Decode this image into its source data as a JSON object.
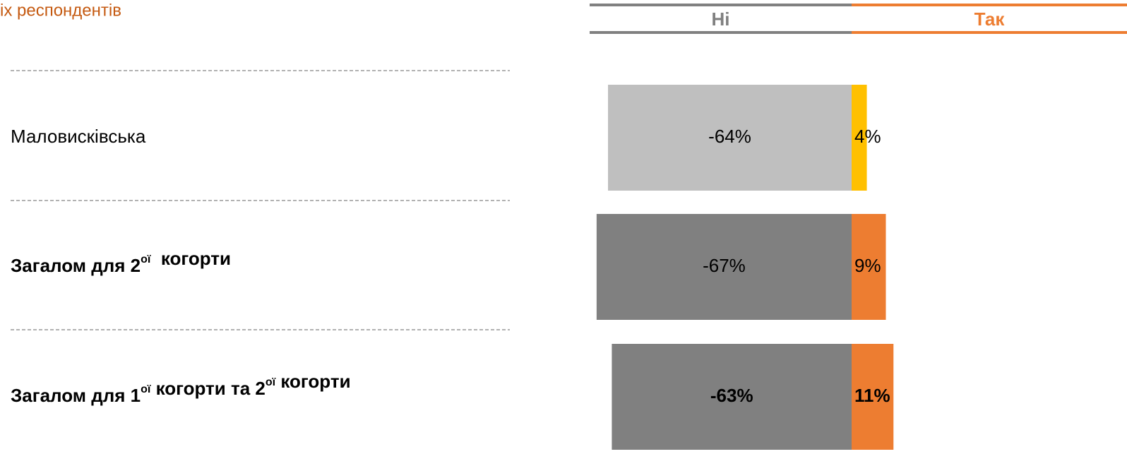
{
  "chart_data": {
    "type": "diverging_bar",
    "title": "іх респондентів",
    "categories": [
      [
        {
          "text": "Маловисківська"
        }
      ],
      [
        {
          "text": "Загалом для 2"
        },
        {
          "sup": "ої"
        },
        {
          "text": "  когорти"
        }
      ],
      [
        {
          "text": "Загалом для 1"
        },
        {
          "sup": "ої"
        },
        {
          "text": " когорти та 2"
        },
        {
          "sup": "ої"
        },
        {
          "text": " когорти"
        }
      ]
    ],
    "label_bold": [
      false,
      true,
      true
    ],
    "value_bold": [
      false,
      false,
      true
    ],
    "series": [
      {
        "name": "Ні",
        "color": "#808080",
        "colors": [
          "#bfbfbf",
          "#808080",
          "#808080"
        ],
        "values": [
          -64,
          -67,
          -63
        ],
        "value_labels": [
          "-64%",
          "-67%",
          "-63%"
        ]
      },
      {
        "name": "Так",
        "color": "#ed7d31",
        "colors": [
          "#ffc000",
          "#ed7d31",
          "#ed7d31"
        ],
        "values": [
          4,
          9,
          11
        ],
        "value_labels": [
          "4%",
          "9%",
          "11%"
        ]
      }
    ]
  }
}
